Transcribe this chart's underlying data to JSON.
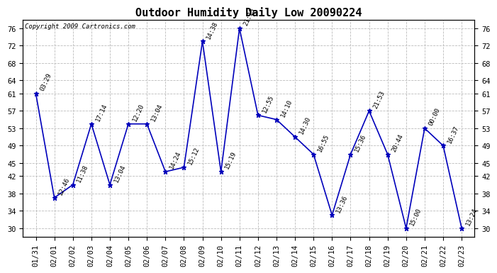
{
  "title": "Outdoor Humidity Daily Low 20090224",
  "copyright": "Copyright 2009 Cartronics.com",
  "x_labels": [
    "01/31",
    "02/01",
    "02/02",
    "02/03",
    "02/04",
    "02/05",
    "02/06",
    "02/07",
    "02/08",
    "02/09",
    "02/10",
    "02/11",
    "02/12",
    "02/13",
    "02/14",
    "02/15",
    "02/16",
    "02/17",
    "02/18",
    "02/19",
    "02/20",
    "02/21",
    "02/22",
    "02/23"
  ],
  "y_values": [
    61,
    37,
    40,
    54,
    40,
    54,
    54,
    43,
    44,
    73,
    43,
    76,
    56,
    55,
    51,
    47,
    33,
    47,
    57,
    47,
    30,
    53,
    49,
    30
  ],
  "time_labels": [
    "03:29",
    "12:46",
    "11:38",
    "17:14",
    "13:04",
    "12:20",
    "13:04",
    "14:24",
    "15:12",
    "14:38",
    "15:19",
    "21:15",
    "12:55",
    "14:10",
    "14:30",
    "16:55",
    "13:36",
    "15:36",
    "21:53",
    "20:44",
    "15:00",
    "00:00",
    "16:37",
    "13:24"
  ],
  "line_color": "#0000bb",
  "background_color": "#ffffff",
  "grid_color": "#bbbbbb",
  "ylim": [
    28,
    78
  ],
  "yticks": [
    30,
    34,
    38,
    42,
    45,
    49,
    53,
    57,
    61,
    64,
    68,
    72,
    76
  ],
  "title_fontsize": 11,
  "tick_fontsize": 7.5,
  "label_fontsize": 6.5
}
